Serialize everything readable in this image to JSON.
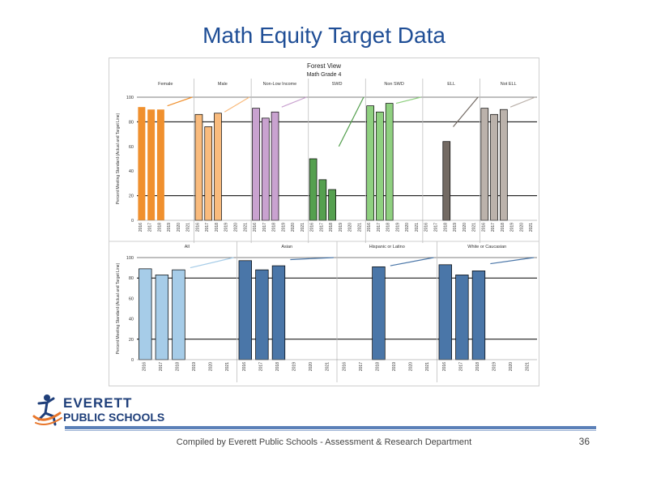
{
  "slide": {
    "title": "Math Equity Target Data",
    "footer": "Compiled  by Everett Public Schools - Assessment & Research Department",
    "page_number": "36"
  },
  "logo": {
    "line1": "EVERETT",
    "line2": "PUBLIC SCHOOLS"
  },
  "chart_data": {
    "type": "bar",
    "title": "Forest View",
    "subtitle": "Math Grade 4",
    "ylabel": "Percent Meeting Standard (Actual and Target Line)",
    "ylim": [
      0,
      100
    ],
    "yticks": [
      0,
      20,
      40,
      60,
      80,
      100
    ],
    "gridlines": [
      20,
      80
    ],
    "years": [
      "2016",
      "2017",
      "2018",
      "2019",
      "2020",
      "2021"
    ],
    "panels": [
      {
        "groups": [
          {
            "name": "Female",
            "color": "#f0902e",
            "values": [
              92,
              90,
              90,
              null,
              null,
              null
            ],
            "target": [
              93,
              100
            ]
          },
          {
            "name": "Male",
            "color": "#f9bb7d",
            "values": [
              86,
              76,
              87,
              null,
              null,
              null
            ],
            "target": [
              88,
              100
            ]
          },
          {
            "name": "Non-Low Income",
            "color": "#c9a2d0",
            "values": [
              91,
              83,
              88,
              null,
              null,
              null
            ],
            "target": [
              92,
              100
            ]
          },
          {
            "name": "SWD",
            "color": "#55a04f",
            "values": [
              50,
              33,
              25,
              null,
              null,
              null
            ],
            "target": [
              60,
              100
            ]
          },
          {
            "name": "Non SWD",
            "color": "#8fd080",
            "values": [
              93,
              88,
              95,
              null,
              null,
              null
            ],
            "target": [
              95,
              100
            ]
          },
          {
            "name": "ELL",
            "color": "#736a63",
            "values": [
              null,
              null,
              64,
              null,
              null,
              null
            ],
            "target": [
              76,
              100
            ]
          },
          {
            "name": "Not ELL",
            "color": "#bbb2ab",
            "values": [
              91,
              86,
              90,
              null,
              null,
              null
            ],
            "target": [
              92,
              100
            ]
          }
        ]
      },
      {
        "groups": [
          {
            "name": "All",
            "color": "#a6cce8",
            "values": [
              89,
              83,
              88,
              null,
              null,
              null
            ],
            "target": [
              90,
              100
            ]
          },
          {
            "name": "Asian",
            "color": "#4a76a8",
            "values": [
              97,
              88,
              92,
              null,
              null,
              null
            ],
            "target": [
              98,
              100
            ]
          },
          {
            "name": "Hispanic or Latino",
            "color": "#4a76a8",
            "values": [
              null,
              null,
              91,
              null,
              null,
              null
            ],
            "target": [
              92,
              100
            ]
          },
          {
            "name": "White or Caucasian",
            "color": "#4a76a8",
            "values": [
              93,
              83,
              87,
              null,
              null,
              null
            ],
            "target": [
              94,
              100
            ]
          }
        ]
      }
    ]
  }
}
